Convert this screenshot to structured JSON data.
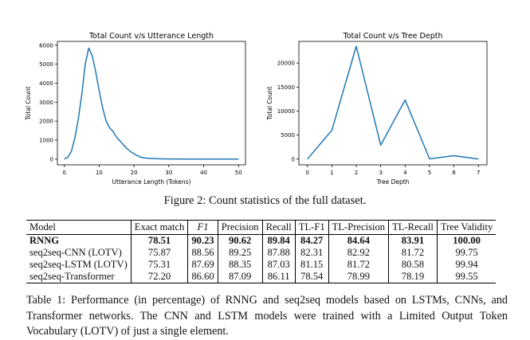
{
  "chart_data": [
    {
      "type": "line",
      "title": "Total Count v/s Utterance Length",
      "xlabel": "Utterance Length (Tokens)",
      "ylabel": "Total Count",
      "xlim": [
        -2,
        52
      ],
      "ylim": [
        -300,
        6200
      ],
      "xticks": [
        0,
        10,
        20,
        30,
        40,
        50
      ],
      "yticks": [
        0,
        1000,
        2000,
        3000,
        4000,
        5000,
        6000
      ],
      "line_color": "#1f77b4",
      "x": [
        0,
        1,
        2,
        3,
        4,
        5,
        6,
        7,
        8,
        9,
        10,
        11,
        12,
        13,
        14,
        15,
        16,
        17,
        18,
        19,
        20,
        21,
        22,
        23,
        24,
        25,
        26,
        28,
        30,
        35,
        40,
        45,
        50
      ],
      "y": [
        0,
        100,
        400,
        1100,
        2100,
        3400,
        5000,
        5850,
        5450,
        4600,
        3600,
        2700,
        2000,
        1650,
        1450,
        1150,
        950,
        750,
        550,
        400,
        280,
        180,
        100,
        70,
        50,
        35,
        25,
        15,
        10,
        8,
        5,
        3,
        2
      ]
    },
    {
      "type": "line",
      "title": "Total Count v/s Tree Depth",
      "xlabel": "Tree Depth",
      "ylabel": "Total Count",
      "xlim": [
        -0.35,
        7.35
      ],
      "ylim": [
        -1200,
        24500
      ],
      "xticks": [
        0,
        1,
        2,
        3,
        4,
        5,
        6,
        7
      ],
      "yticks": [
        0,
        5000,
        10000,
        15000,
        20000
      ],
      "line_color": "#1f77b4",
      "x": [
        0,
        1,
        2,
        3,
        4,
        5,
        6,
        7
      ],
      "y": [
        0,
        6000,
        23500,
        2900,
        12300,
        50,
        700,
        0
      ]
    }
  ],
  "figure_caption": "Figure 2: Count statistics of the full dataset.",
  "table": {
    "headers": [
      "Model",
      "Exact match",
      "F1",
      "Precision",
      "Recall",
      "TL-F1",
      "TL-Precision",
      "TL-Recall",
      "Tree Validity"
    ],
    "rows": [
      [
        "RNNG",
        "78.51",
        "90.23",
        "90.62",
        "89.84",
        "84.27",
        "84.64",
        "83.91",
        "100.00"
      ],
      [
        "seq2seq-CNN (LOTV)",
        "75.87",
        "88.56",
        "89.25",
        "87.88",
        "82.31",
        "82.92",
        "81.72",
        "99.75"
      ],
      [
        "seq2seq-LSTM (LOTV)",
        "75.31",
        "87.69",
        "88.35",
        "87.03",
        "81.15",
        "81.72",
        "80.58",
        "99.94"
      ],
      [
        "seq2seq-Transformer",
        "72.20",
        "86.60",
        "87.09",
        "86.11",
        "78.54",
        "78.99",
        "78.19",
        "99.55"
      ]
    ]
  },
  "table_caption": "Table 1: Performance (in percentage) of RNNG and seq2seq models based on LSTMs, CNNs, and Transformer networks. The CNN and LSTM models were trained with a Limited Output Token Vocabulary (LOTV) of just a single element."
}
